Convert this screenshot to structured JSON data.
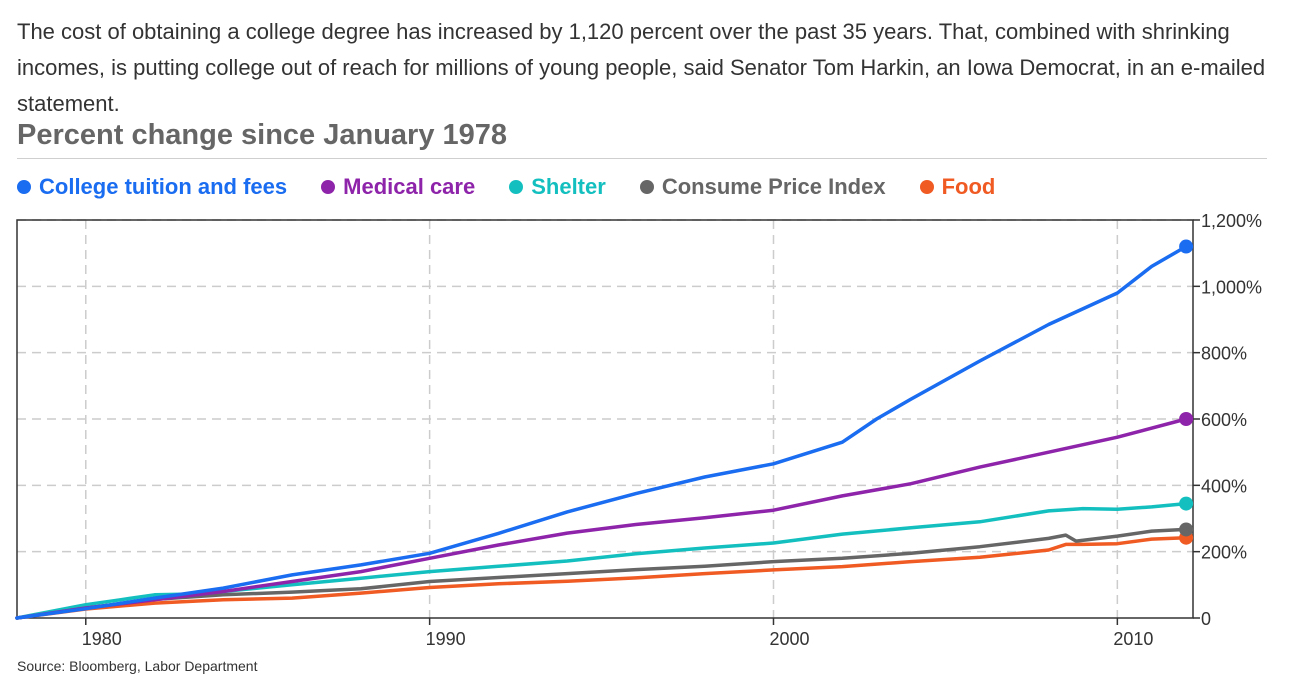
{
  "intro_text": "The cost of obtaining a college degree has increased by 1,120 percent over the past 35 years. That, combined with shrinking incomes, is putting college out of reach for millions of young people, said Senator Tom Harkin, an Iowa Democrat, in an e-mailed statement.",
  "source": "Source: Bloomberg, Labor Department",
  "chart_data": {
    "type": "line",
    "title": "Percent change since January 1978",
    "xlabel": "",
    "ylabel": "",
    "xlim": [
      1978,
      2012.2
    ],
    "ylim": [
      0,
      1200
    ],
    "x_ticks": [
      1980,
      1990,
      2000,
      2010
    ],
    "y_ticks": [
      0,
      200,
      400,
      600,
      800,
      1000,
      1200
    ],
    "y_tick_labels": [
      "0",
      "200%",
      "400%",
      "600%",
      "800%",
      "1,000%",
      "1,200%"
    ],
    "grid": true,
    "legend_position": "top",
    "series": [
      {
        "name": "Food",
        "color": "#f05a23",
        "x": [
          1978,
          1980,
          1982,
          1984,
          1986,
          1988,
          1990,
          1992,
          1994,
          1996,
          1998,
          2000,
          2002,
          2004,
          2006,
          2008,
          2008.5,
          2009,
          2010,
          2011,
          2012
        ],
        "y": [
          0,
          27,
          45,
          55,
          60,
          75,
          92,
          103,
          111,
          121,
          134,
          145,
          155,
          170,
          183,
          205,
          222,
          222,
          224,
          238,
          242
        ]
      },
      {
        "name": "Consume Price Index",
        "color": "#666666",
        "x": [
          1978,
          1980,
          1982,
          1984,
          1986,
          1988,
          1990,
          1992,
          1994,
          1996,
          1998,
          2000,
          2002,
          2004,
          2006,
          2008,
          2008.5,
          2008.8,
          2010,
          2011,
          2012
        ],
        "y": [
          0,
          30,
          56,
          70,
          78,
          88,
          110,
          122,
          134,
          146,
          156,
          170,
          180,
          195,
          215,
          240,
          250,
          232,
          247,
          262,
          267
        ]
      },
      {
        "name": "Shelter",
        "color": "#14bfbf",
        "x": [
          1978,
          1980,
          1981,
          1982,
          1983,
          1984,
          1986,
          1988,
          1990,
          1992,
          1994,
          1996,
          1998,
          2000,
          2002,
          2004,
          2006,
          2008,
          2009,
          2010,
          2011,
          2012
        ],
        "y": [
          0,
          40,
          55,
          70,
          72,
          80,
          100,
          120,
          140,
          156,
          172,
          194,
          211,
          226,
          253,
          272,
          290,
          323,
          330,
          328,
          335,
          345
        ]
      },
      {
        "name": "Medical care",
        "color": "#8e24aa",
        "x": [
          1978,
          1980,
          1982,
          1984,
          1986,
          1988,
          1990,
          1992,
          1994,
          1996,
          1998,
          2000,
          2002,
          2004,
          2006,
          2008,
          2010,
          2012
        ],
        "y": [
          0,
          30,
          55,
          80,
          110,
          140,
          180,
          220,
          256,
          282,
          302,
          325,
          368,
          405,
          455,
          500,
          545,
          600
        ]
      },
      {
        "name": "College tuition and fees",
        "color": "#1a6cf0",
        "x": [
          1978,
          1980,
          1982,
          1984,
          1986,
          1988,
          1990,
          1992,
          1994,
          1996,
          1998,
          2000,
          2002,
          2003,
          2004,
          2006,
          2008,
          2010,
          2011,
          2012
        ],
        "y": [
          0,
          28,
          60,
          90,
          130,
          160,
          195,
          255,
          320,
          375,
          425,
          465,
          530,
          600,
          660,
          775,
          885,
          980,
          1060,
          1120
        ]
      }
    ]
  }
}
